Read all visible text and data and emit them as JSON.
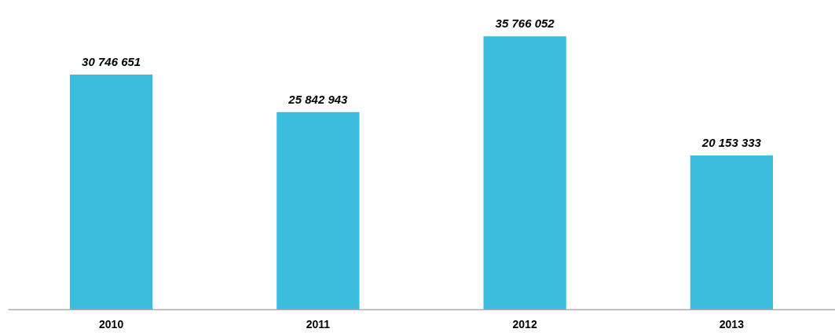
{
  "chart_data": {
    "type": "bar",
    "categories": [
      "2010",
      "2011",
      "2012",
      "2013"
    ],
    "values": [
      30746651,
      25842943,
      35766052,
      20153333
    ],
    "value_labels": [
      "30 746 651",
      "25 842 943",
      "35 766 052",
      "20 153 333"
    ],
    "color": "#3bbddd",
    "grid": false
  }
}
